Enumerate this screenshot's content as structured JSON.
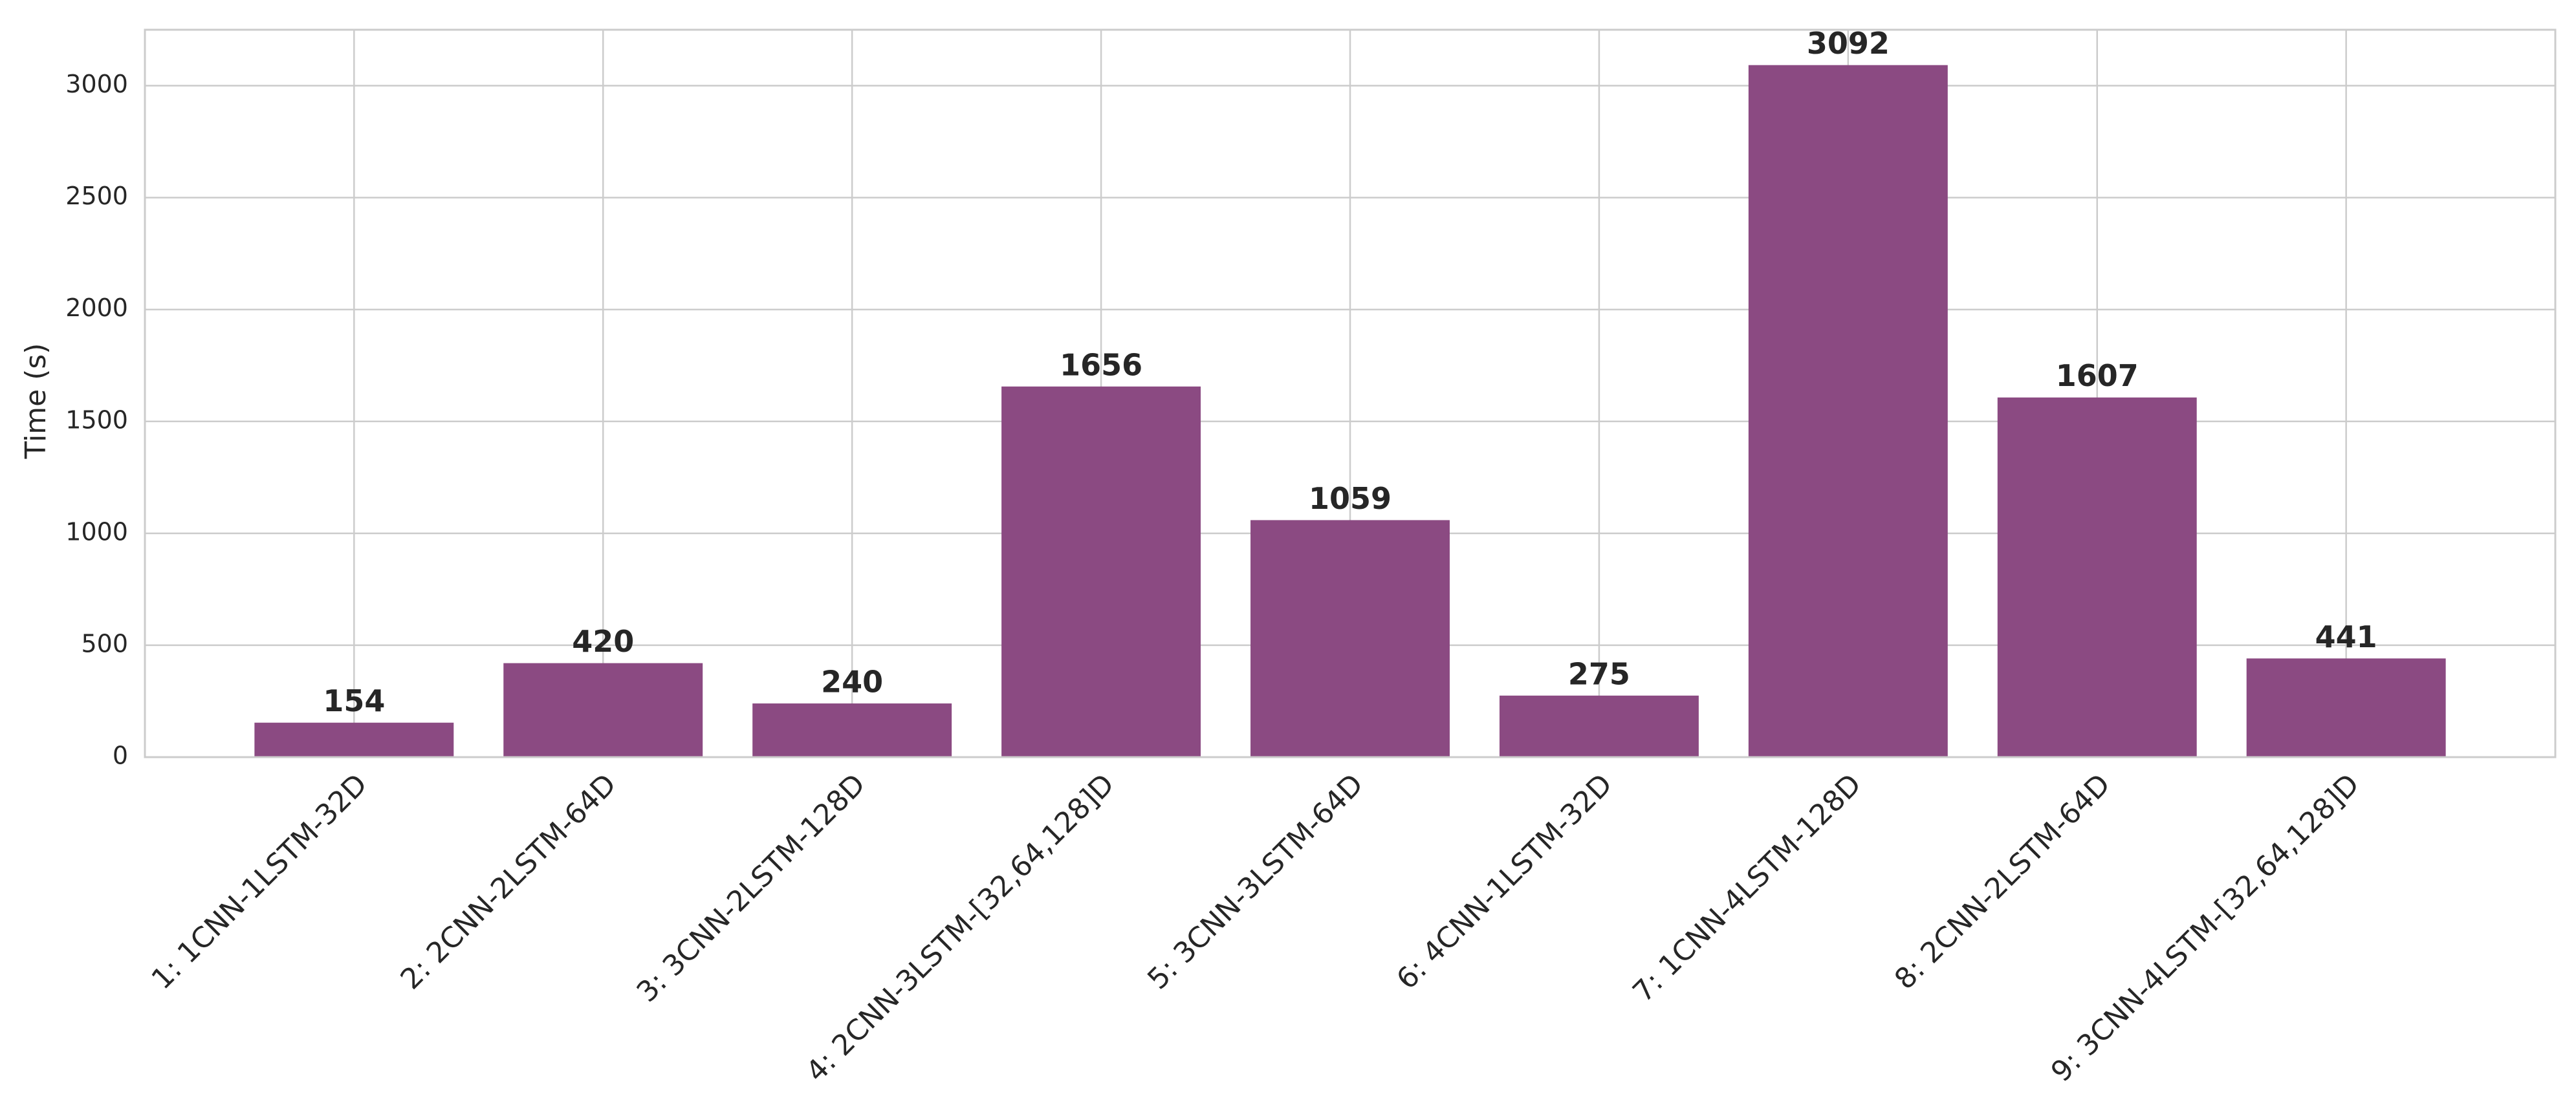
{
  "chart_data": {
    "type": "bar",
    "y_label": "Time (s)",
    "categories": [
      "1: 1CNN-1LSTM-32D",
      "2: 2CNN-2LSTM-64D",
      "3: 3CNN-2LSTM-128D",
      "4: 2CNN-3LSTM-[32,64,128]D",
      "5: 3CNN-3LSTM-64D",
      "6: 4CNN-1LSTM-32D",
      "7: 1CNN-4LSTM-128D",
      "8: 2CNN-2LSTM-64D",
      "9: 3CNN-4LSTM-[32,64,128]D"
    ],
    "values": [
      154,
      420,
      240,
      1656,
      1059,
      275,
      3092,
      1607,
      441
    ],
    "color": "#8b4a82",
    "ylim": [
      0,
      3250
    ],
    "yticks": [
      0,
      500,
      1000,
      1500,
      2000,
      2500,
      3000
    ],
    "grid": true,
    "show_value_labels": true
  }
}
